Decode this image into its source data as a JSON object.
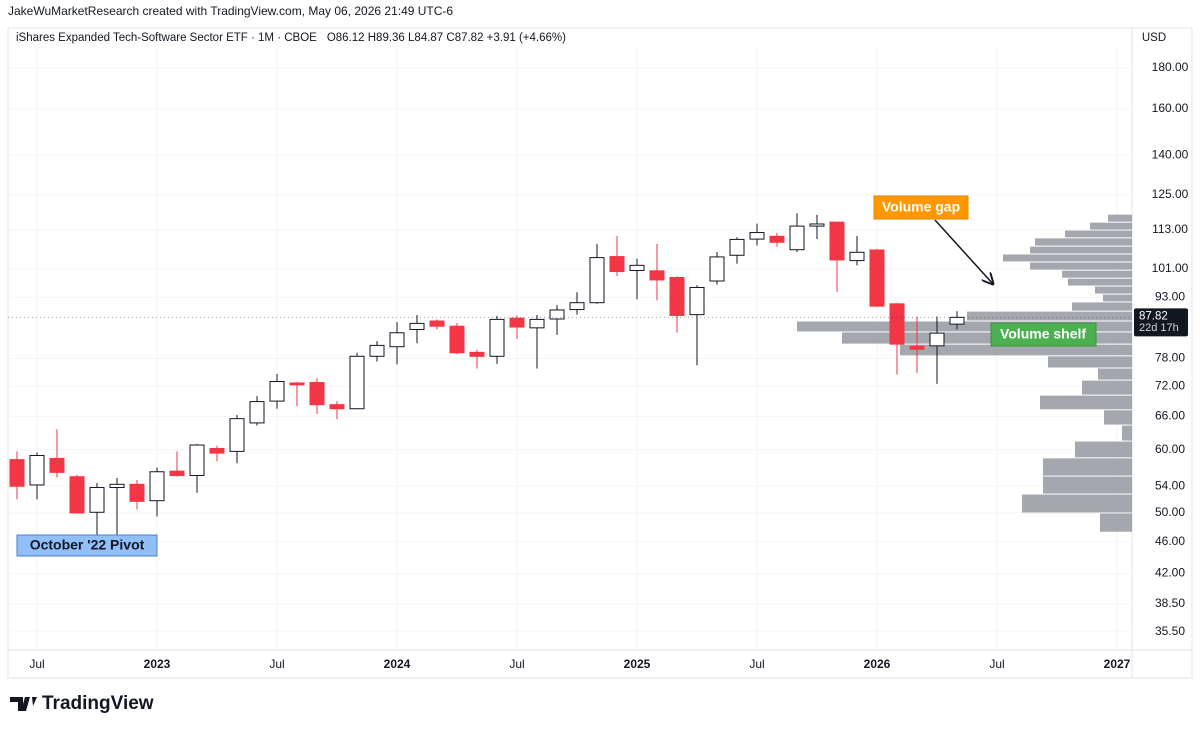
{
  "header": {
    "credit": "JakeWuMarketResearch created with TradingView.com, May 06, 2026 21:49 UTC-6",
    "symbol": "iShares Expanded Tech-Software Sector ETF · 1M · CBOE",
    "ohlc": "O86.12 H89.36 L84.87 C87.82 +3.91 (+4.66%)",
    "currency": "USD"
  },
  "chart_data": {
    "type": "candlestick",
    "log_scale": true,
    "up_color": "#ffffff",
    "down_color": "#f23645",
    "outline_color": "#131722",
    "x": [
      "2022-06",
      "2022-07",
      "2022-08",
      "2022-09",
      "2022-10",
      "2022-11",
      "2022-12",
      "2023-01",
      "2023-02",
      "2023-03",
      "2023-04",
      "2023-05",
      "2023-06",
      "2023-07",
      "2023-08",
      "2023-09",
      "2023-10",
      "2023-11",
      "2023-12",
      "2024-01",
      "2024-02",
      "2024-03",
      "2024-04",
      "2024-05",
      "2024-06",
      "2024-07",
      "2024-08",
      "2024-09",
      "2024-10",
      "2024-11",
      "2024-12",
      "2025-01",
      "2025-02",
      "2025-03",
      "2025-04",
      "2025-05",
      "2025-06",
      "2025-07",
      "2025-08",
      "2025-09",
      "2025-10",
      "2025-11",
      "2025-12",
      "2026-01",
      "2026-02",
      "2026-03",
      "2026-04",
      "2026-05"
    ],
    "open": [
      58.3,
      54.2,
      58.5,
      55.5,
      50.1,
      53.8,
      54.3,
      51.8,
      56.4,
      55.7,
      60.2,
      59.7,
      64.8,
      69,
      72.7,
      72.8,
      68.3,
      67.5,
      78.5,
      80.7,
      84.8,
      86.9,
      85.6,
      79.4,
      78.5,
      87.6,
      85.2,
      87.4,
      89.8,
      91.6,
      104.6,
      100.5,
      100.4,
      98.5,
      88.5,
      97.5,
      105,
      110,
      110.9,
      106.7,
      114.2,
      115.5,
      103.4,
      106.6,
      91.3,
      80.8,
      80.9,
      86.12
    ],
    "high": [
      59.7,
      59.5,
      63.6,
      55.8,
      54.5,
      55.3,
      55,
      57,
      59.7,
      61,
      60.7,
      66.3,
      70,
      74.6,
      72.9,
      73.7,
      69,
      79.3,
      82,
      86.6,
      88.4,
      87.3,
      86.4,
      80,
      88.2,
      88.3,
      88.4,
      91,
      94.4,
      108.5,
      111,
      104,
      108.5,
      98.8,
      96.3,
      106,
      110.6,
      115,
      112,
      118.5,
      118,
      115.7,
      111,
      107,
      91.5,
      88,
      88,
      89.36
    ],
    "low": [
      52,
      52,
      55.4,
      49.9,
      46.5,
      46.5,
      50.5,
      49.5,
      55.5,
      53,
      58,
      57.7,
      64.3,
      67.5,
      68,
      66.5,
      65.5,
      67.4,
      77.3,
      76.7,
      81.5,
      84.8,
      79,
      75.8,
      76.8,
      82.5,
      75.8,
      83.5,
      88.5,
      91.3,
      98.9,
      92.5,
      92.2,
      84,
      76.5,
      96.5,
      102.5,
      108,
      107.6,
      106,
      110,
      94.5,
      102,
      90.5,
      74.5,
      74.8,
      72.5,
      84.87
    ],
    "close": [
      54,
      59,
      56.2,
      50,
      53.8,
      54.3,
      51.7,
      56.3,
      55.7,
      60.8,
      59.4,
      65.6,
      68.9,
      73,
      72.3,
      68.3,
      67.5,
      78.5,
      81,
      84,
      86.3,
      85.6,
      79.3,
      78.5,
      87.3,
      85.4,
      87.3,
      89.7,
      91.6,
      104.3,
      100.2,
      102,
      97.8,
      88.3,
      95.7,
      104.5,
      109.9,
      112.1,
      109,
      114.2,
      114.9,
      103.6,
      105.9,
      90.7,
      81.3,
      80.1,
      83.91,
      87.82
    ],
    "countdown": "22d 17h",
    "xlim": [
      "2022-05",
      "2027-02"
    ],
    "xticks": [
      {
        "value": "2022-07",
        "label": "Jul"
      },
      {
        "value": "2023-01",
        "label": "2023"
      },
      {
        "value": "2023-07",
        "label": "Jul"
      },
      {
        "value": "2024-01",
        "label": "2024"
      },
      {
        "value": "2024-07",
        "label": "Jul"
      },
      {
        "value": "2025-01",
        "label": "2025"
      },
      {
        "value": "2025-07",
        "label": "Jul"
      },
      {
        "value": "2026-01",
        "label": "2026"
      },
      {
        "value": "2026-07",
        "label": "Jul"
      },
      {
        "value": "2027-01",
        "label": "2027"
      }
    ],
    "ylim": [
      33.7,
      190.7
    ],
    "yticks": [
      {
        "value": 35.5,
        "label": "35.50"
      },
      {
        "value": 38.5,
        "label": "38.50"
      },
      {
        "value": 42,
        "label": "42.00"
      },
      {
        "value": 46,
        "label": "46.00"
      },
      {
        "value": 50,
        "label": "50.00"
      },
      {
        "value": 54,
        "label": "54.00"
      },
      {
        "value": 60,
        "label": "60.00"
      },
      {
        "value": 66,
        "label": "66.00"
      },
      {
        "value": 72,
        "label": "72.00"
      },
      {
        "value": 78,
        "label": "78.00"
      },
      {
        "value": 93,
        "label": "93.00"
      },
      {
        "value": 101,
        "label": "101.00"
      },
      {
        "value": 113,
        "label": "113.00"
      },
      {
        "value": 125,
        "label": "125.00"
      },
      {
        "value": 140,
        "label": "140.00"
      },
      {
        "value": 160,
        "label": "160.00"
      },
      {
        "value": 180,
        "label": "180.00"
      }
    ],
    "volume_profile": {
      "color": "#9598a1",
      "bins": [
        47.3,
        50.0,
        52.8,
        55.6,
        58.6,
        61.5,
        64.4,
        67.3,
        70.2,
        73.3,
        75.9,
        78.6,
        81.3,
        84.2,
        86.9,
        89.4,
        91.8,
        93.9,
        96.1,
        98.3,
        100.6,
        103.0,
        105.4,
        107.8,
        110.4,
        112.9,
        115.5,
        118.2
      ],
      "values": [
        32,
        110,
        89,
        89,
        57,
        10,
        28,
        92,
        50,
        34,
        84,
        232,
        290,
        335,
        165,
        60,
        29,
        37,
        64,
        70,
        102,
        129,
        102,
        97,
        67,
        42,
        24
      ]
    },
    "annotations": [
      {
        "text": "Volume gap"
      },
      {
        "text": "Volume shelf"
      },
      {
        "text": "October '22 Pivot"
      }
    ]
  },
  "footer": {
    "brand": "TradingView"
  }
}
